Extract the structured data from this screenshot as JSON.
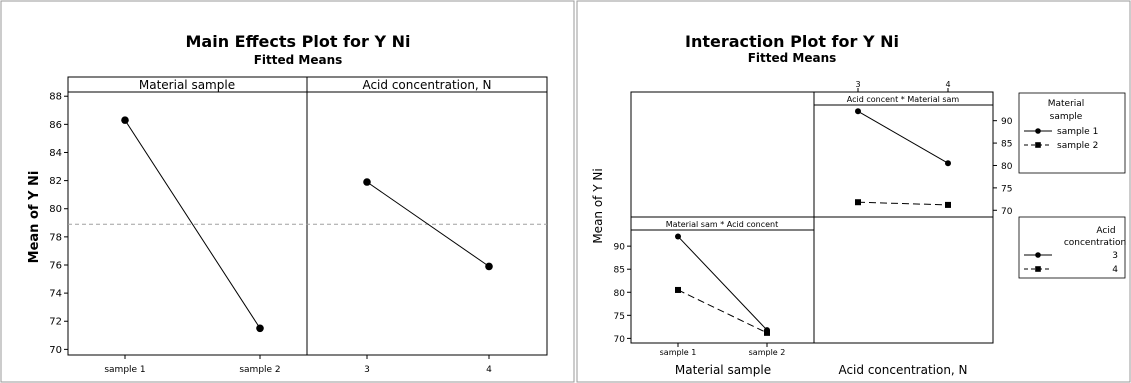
{
  "chart_data": [
    {
      "type": "line",
      "title": "Main Effects Plot for Y Ni",
      "subtitle": "Fitted Means",
      "ylabel": "Mean of Y Ni",
      "ylim": [
        69.6,
        88.3
      ],
      "yticks": [
        "70",
        "72",
        "74",
        "76",
        "78",
        "80",
        "82",
        "84",
        "86",
        "88"
      ],
      "reference_line": 78.9,
      "panels": [
        {
          "label": "Material sample",
          "categories": [
            "sample 1",
            "sample 2"
          ],
          "values": [
            86.3,
            71.5
          ]
        },
        {
          "label": "Acid concentration, N",
          "categories": [
            "3",
            "4"
          ],
          "values": [
            81.9,
            75.9
          ]
        }
      ],
      "grid": false
    },
    {
      "type": "line",
      "title": "Interaction Plot for Y Ni",
      "subtitle": "Fitted Means",
      "ylabel": "Mean of Y Ni",
      "panels": [
        {
          "label": "Acid concent * Material sam",
          "x": [
            "3",
            "4"
          ],
          "ylim": [
            68.5,
            93.5
          ],
          "yticks": [
            "70",
            "75",
            "80",
            "85",
            "90"
          ],
          "series": [
            {
              "name": "sample 1",
              "values": [
                92.1,
                80.5
              ]
            },
            {
              "name": "sample 2",
              "values": [
                71.8,
                71.2
              ]
            }
          ]
        },
        {
          "label": "Material sam * Acid concent",
          "x": [
            "sample 1",
            "sample 2"
          ],
          "ylim": [
            69.0,
            93.5
          ],
          "yticks": [
            "70",
            "75",
            "80",
            "85",
            "90"
          ],
          "xlabel": "Material sample",
          "series": [
            {
              "name": "3",
              "values": [
                92.1,
                71.8
              ]
            },
            {
              "name": "4",
              "values": [
                80.5,
                71.2
              ]
            }
          ]
        }
      ],
      "xlabel_right": "Acid concentration, N",
      "legends": [
        {
          "title": [
            "Material",
            "sample"
          ],
          "entries": [
            "sample 1",
            "sample 2"
          ]
        },
        {
          "title": [
            "Acid",
            "concentration"
          ],
          "entries": [
            "3",
            "4"
          ]
        }
      ],
      "grid": false
    }
  ]
}
